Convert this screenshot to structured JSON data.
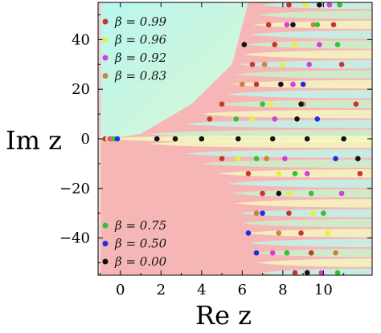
{
  "chart_data": {
    "type": "scatter",
    "xlabel": "Re z",
    "ylabel": "Im z",
    "xlim": [
      -1.1,
      12.4
    ],
    "ylim": [
      -55,
      55
    ],
    "x_ticks": [
      "0",
      "2",
      "4",
      "6",
      "8",
      "10"
    ],
    "y_ticks": [
      "40",
      "20",
      "0",
      "−20",
      "−40"
    ],
    "x_tick_values": [
      0,
      2,
      4,
      6,
      8,
      10
    ],
    "y_tick_values": [
      40,
      20,
      0,
      -20,
      -40
    ],
    "background": {
      "pink": "#f7b6b6",
      "cyan": "#bff5ea",
      "yellow": "#f3f7c0",
      "green": "#c8f2cc"
    },
    "series": [
      {
        "name": "β = 0.99",
        "color": "#c0392b",
        "points": [
          [
            -0.75,
            0
          ],
          [
            8.3,
            54
          ],
          [
            7.3,
            46
          ],
          [
            7.6,
            38
          ],
          [
            6.5,
            30
          ],
          [
            6.7,
            22
          ],
          [
            5.0,
            14
          ],
          [
            4.4,
            8
          ],
          [
            5.0,
            -8
          ],
          [
            6.3,
            -14
          ],
          [
            7.0,
            -22
          ],
          [
            8.3,
            -30
          ],
          [
            8.9,
            -38
          ],
          [
            9.4,
            -46
          ],
          [
            8.6,
            -54
          ],
          [
            10.5,
            46
          ],
          [
            10.9,
            30
          ],
          [
            11.6,
            14
          ],
          [
            11.8,
            -14
          ]
        ]
      },
      {
        "name": "β = 0.96",
        "color": "#e4f03c",
        "points": [
          [
            -0.62,
            0
          ],
          [
            9.1,
            54
          ],
          [
            8.6,
            38
          ],
          [
            8.0,
            30
          ],
          [
            7.4,
            14
          ],
          [
            6.5,
            8
          ],
          [
            5.8,
            -8
          ],
          [
            7.8,
            -14
          ],
          [
            8.3,
            -22
          ],
          [
            9.5,
            -30
          ],
          [
            10.2,
            -38
          ]
        ]
      },
      {
        "name": "β = 0.92",
        "color": "#d63cd6",
        "points": [
          [
            -0.5,
            0
          ],
          [
            10.3,
            54
          ],
          [
            8.2,
            46
          ],
          [
            9.8,
            38
          ],
          [
            9.3,
            30
          ],
          [
            8.5,
            22
          ],
          [
            7.6,
            8
          ],
          [
            8.1,
            -8
          ],
          [
            9.2,
            -14
          ],
          [
            10.9,
            -22
          ],
          [
            7.5,
            -46
          ],
          [
            9.9,
            -54
          ]
        ]
      },
      {
        "name": "β = 0.83",
        "color": "#c8843c",
        "points": [
          [
            -0.38,
            0
          ],
          [
            9.5,
            46
          ],
          [
            7.1,
            30
          ],
          [
            6.0,
            22
          ],
          [
            9.0,
            14
          ],
          [
            7.2,
            -8
          ],
          [
            6.7,
            -30
          ],
          [
            7.8,
            -38
          ],
          [
            10.6,
            -46
          ]
        ]
      },
      {
        "name": "β = 0.75",
        "color": "#33c233",
        "points": [
          [
            -0.28,
            0
          ],
          [
            10.8,
            54
          ],
          [
            9.7,
            46
          ],
          [
            10.7,
            38
          ],
          [
            7.0,
            14
          ],
          [
            5.7,
            8
          ],
          [
            6.7,
            -8
          ],
          [
            8.6,
            -14
          ],
          [
            9.4,
            -22
          ],
          [
            10.0,
            -30
          ],
          [
            8.2,
            -46
          ],
          [
            10.7,
            -54
          ]
        ]
      },
      {
        "name": "β = 0.50",
        "color": "#1f2fe0",
        "points": [
          [
            -0.15,
            0
          ],
          [
            9.0,
            22
          ],
          [
            9.7,
            8
          ],
          [
            10.6,
            -8
          ],
          [
            7.0,
            -30
          ],
          [
            6.3,
            -38
          ],
          [
            6.7,
            -46
          ]
        ]
      },
      {
        "name": "β = 0.00",
        "color": "#111111",
        "points": [
          [
            1.8,
            0
          ],
          [
            2.7,
            0
          ],
          [
            4.0,
            0
          ],
          [
            5.8,
            0
          ],
          [
            7.5,
            0
          ],
          [
            9.2,
            0
          ],
          [
            11.0,
            0
          ],
          [
            9.8,
            54
          ],
          [
            8.5,
            46
          ],
          [
            6.1,
            38
          ],
          [
            7.9,
            22
          ],
          [
            8.9,
            14
          ],
          [
            8.7,
            8
          ],
          [
            11.7,
            -8
          ],
          [
            7.8,
            -22
          ],
          [
            9.2,
            -54
          ]
        ]
      }
    ],
    "legend": [
      {
        "text": "β = 0.99",
        "color": "#c0392b",
        "placement": "top-left"
      },
      {
        "text": "β = 0.96",
        "color": "#e4f03c",
        "placement": "top-left"
      },
      {
        "text": "β = 0.92",
        "color": "#d63cd6",
        "placement": "top-left"
      },
      {
        "text": "β = 0.83",
        "color": "#c8843c",
        "placement": "top-left"
      },
      {
        "text": "β = 0.75",
        "color": "#33c233",
        "placement": "bottom-left"
      },
      {
        "text": "β = 0.50",
        "color": "#1f2fe0",
        "placement": "bottom-left"
      },
      {
        "text": "β = 0.00",
        "color": "#111111",
        "placement": "bottom-left"
      }
    ]
  }
}
